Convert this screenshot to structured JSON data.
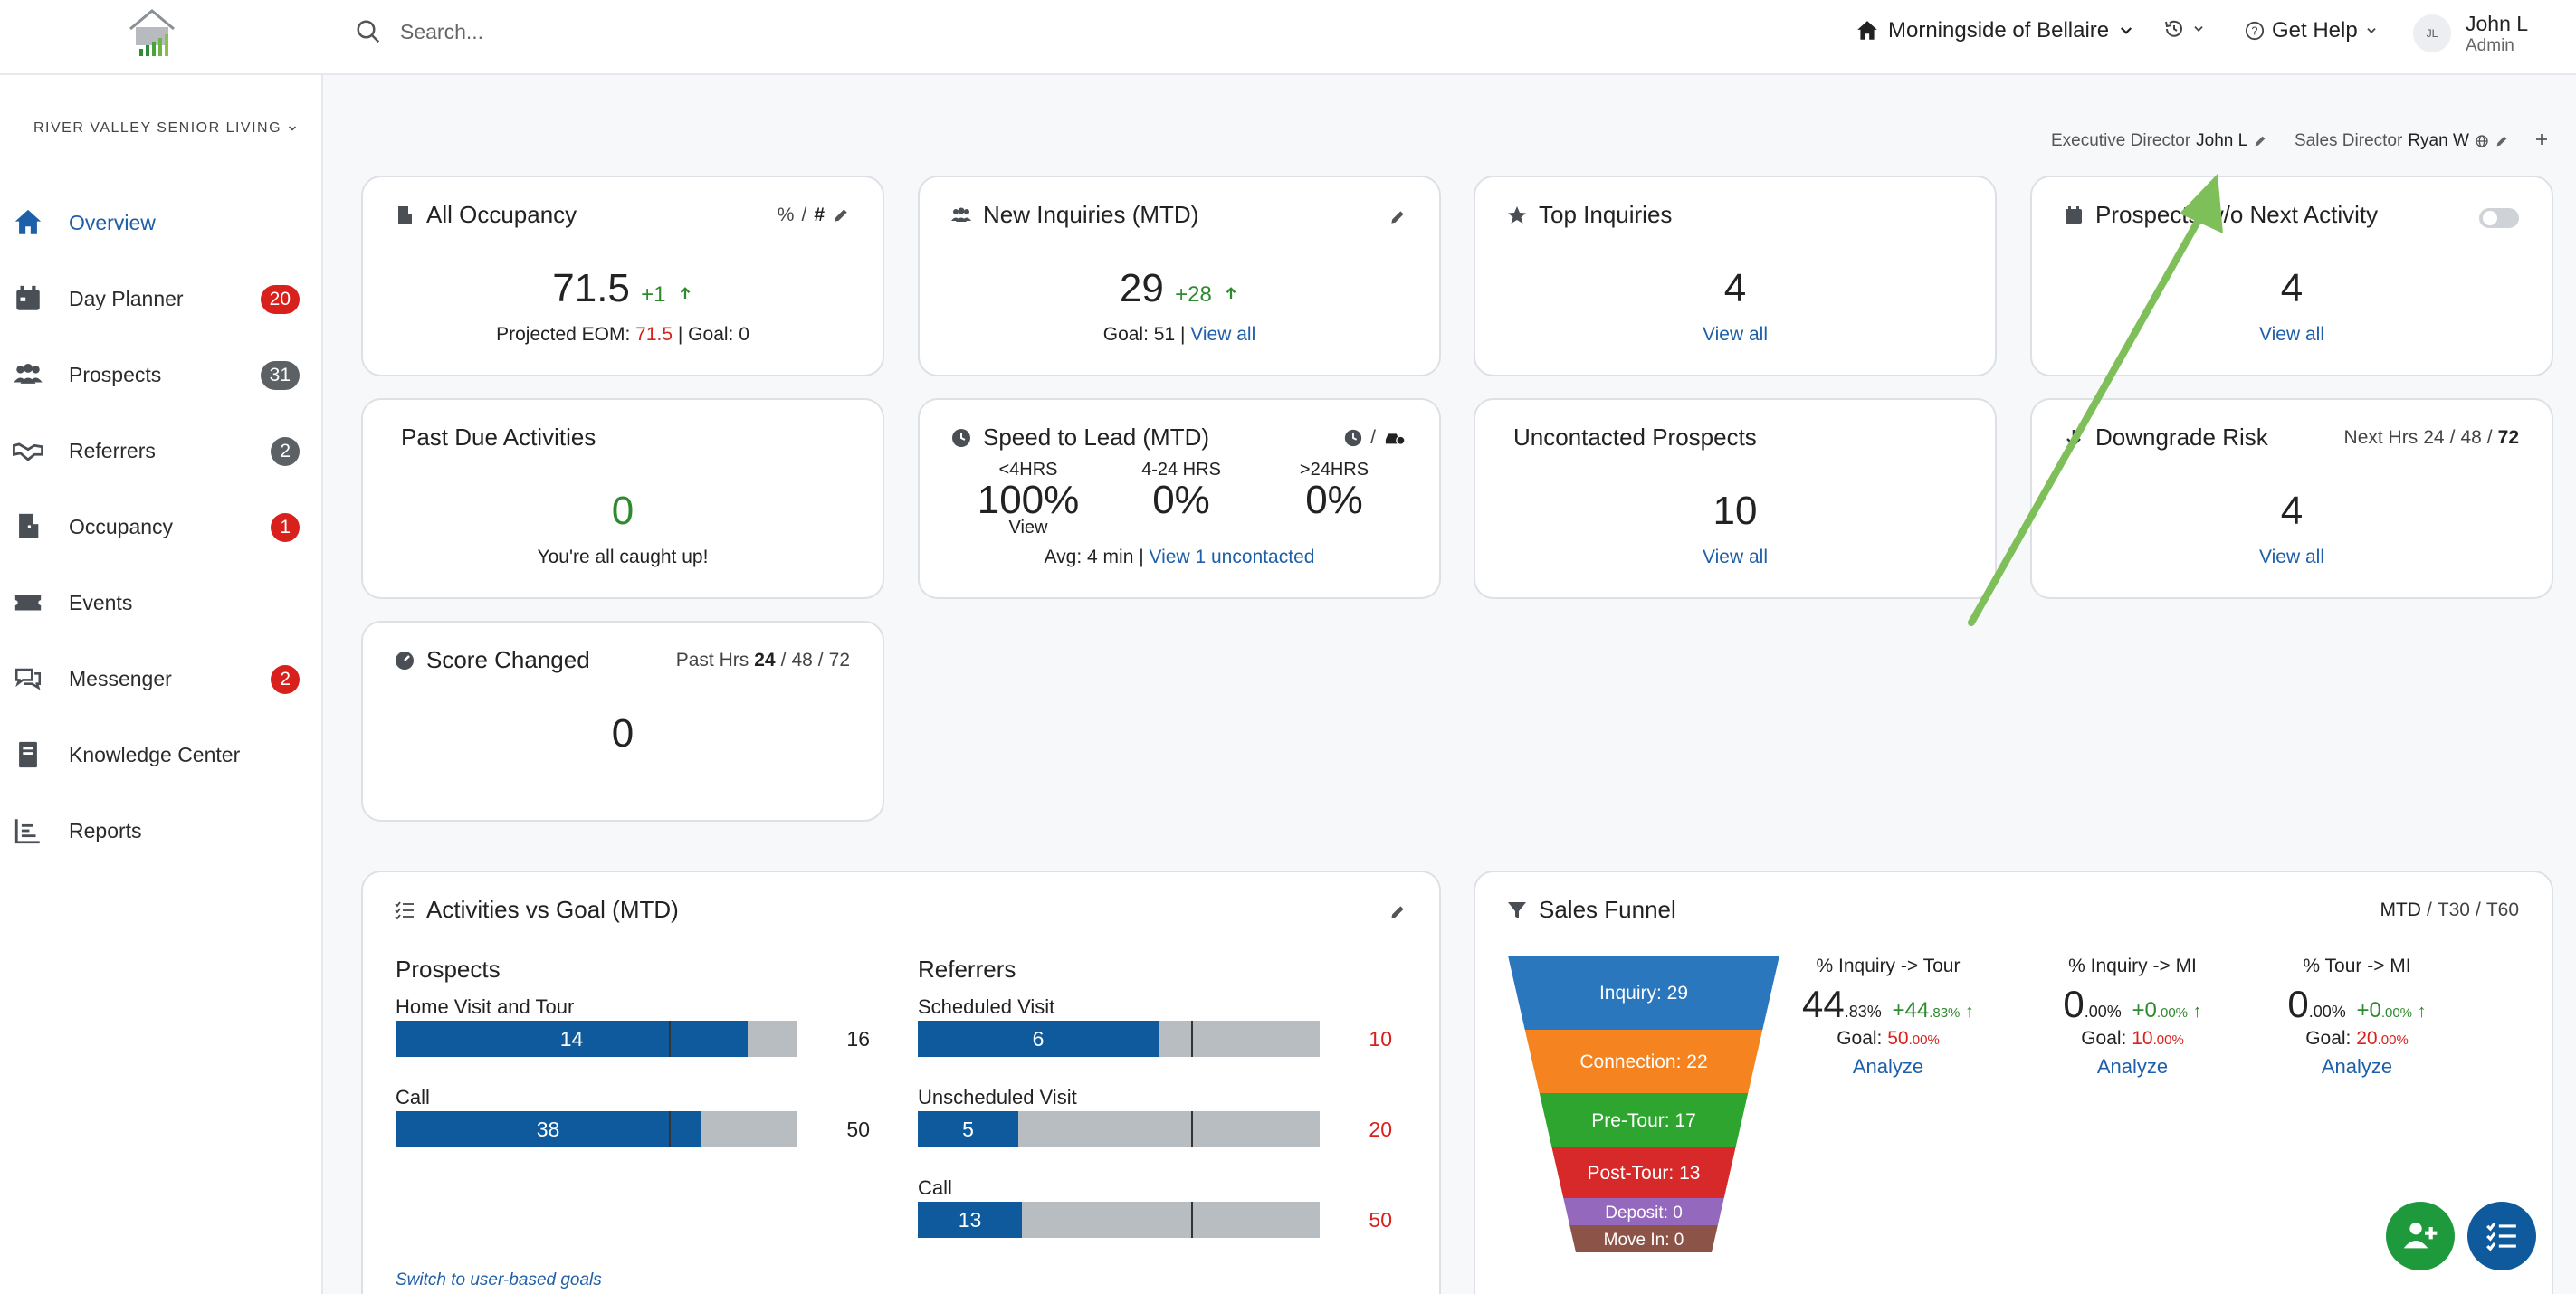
{
  "header": {
    "search_placeholder": "Search...",
    "community": "Morningside of Bellaire",
    "help": "Get Help",
    "user_initials": "JL",
    "user_name": "John L",
    "user_role": "Admin"
  },
  "sidebar": {
    "org": "RIVER VALLEY SENIOR LIVING",
    "items": [
      {
        "label": "Overview",
        "badge": ""
      },
      {
        "label": "Day Planner",
        "badge": "20"
      },
      {
        "label": "Prospects",
        "badge": "31"
      },
      {
        "label": "Referrers",
        "badge": "2"
      },
      {
        "label": "Occupancy",
        "badge": "1"
      },
      {
        "label": "Events",
        "badge": ""
      },
      {
        "label": "Messenger",
        "badge": "2"
      },
      {
        "label": "Knowledge Center",
        "badge": ""
      },
      {
        "label": "Reports",
        "badge": ""
      }
    ]
  },
  "directors": {
    "exec_label": "Executive Director",
    "exec_name": "John L",
    "sales_label": "Sales Director",
    "sales_name": "Ryan W"
  },
  "cards": {
    "occupancy": {
      "title": "All Occupancy",
      "toggle_pct": "%",
      "toggle_sep": "/",
      "toggle_num": "#",
      "value": "71.5",
      "delta": "+1",
      "proj_label": "Projected EOM:",
      "proj_value": "71.5",
      "goal": "| Goal: 0"
    },
    "inquiries": {
      "title": "New Inquiries (MTD)",
      "value": "29",
      "delta": "+28",
      "goal": "Goal: 51 |",
      "link": "View all"
    },
    "top": {
      "title": "Top Inquiries",
      "value": "4",
      "link": "View all"
    },
    "prospects_next": {
      "title": "Prospects w/o Next Activity",
      "value": "4",
      "link": "View all"
    },
    "past_due": {
      "title": "Past Due Activities",
      "value": "0",
      "note": "You're all caught up!"
    },
    "speed": {
      "title": "Speed to Lead (MTD)",
      "sep": "/",
      "cols": [
        {
          "label": "<4HRS",
          "value": "100%"
        },
        {
          "label": "4-24 HRS",
          "value": "0%"
        },
        {
          "label": ">24HRS",
          "value": "0%"
        }
      ],
      "view": "View",
      "avg": "Avg: 4 min |",
      "link": "View 1 uncontacted"
    },
    "uncontacted": {
      "title": "Uncontacted Prospects",
      "value": "10",
      "link": "View all"
    },
    "downgrade": {
      "title": "Downgrade Risk",
      "range_label": "Next Hrs",
      "r1": "24",
      "r2": "48",
      "r3": "72",
      "sep": "/",
      "value": "4",
      "link": "View all"
    },
    "score": {
      "title": "Score Changed",
      "range_label": "Past Hrs",
      "r1": "24",
      "r2": "48",
      "r3": "72",
      "sep": "/",
      "value": "0"
    }
  },
  "activities": {
    "title": "Activities vs Goal (MTD)",
    "prospects_title": "Prospects",
    "referrers_title": "Referrers",
    "prospects": [
      {
        "label": "Home Visit and Tour",
        "value": "14",
        "goal": "16",
        "fill": 0.875,
        "mark": 0.68,
        "goal_color": "#222"
      },
      {
        "label": "Call",
        "value": "38",
        "goal": "50",
        "fill": 0.76,
        "mark": 0.68,
        "goal_color": "#222"
      }
    ],
    "referrers": [
      {
        "label": "Scheduled Visit",
        "value": "6",
        "goal": "10",
        "fill": 0.6,
        "mark": 0.68,
        "goal_color": "#d8201c"
      },
      {
        "label": "Unscheduled Visit",
        "value": "5",
        "goal": "20",
        "fill": 0.25,
        "mark": 0.68,
        "goal_color": "#d8201c"
      },
      {
        "label": "Call",
        "value": "13",
        "goal": "50",
        "fill": 0.26,
        "mark": 0.68,
        "goal_color": "#d8201c"
      }
    ],
    "switch_link": "Switch to user-based goals"
  },
  "funnel": {
    "title": "Sales Funnel",
    "range_active": "MTD",
    "range_t30": "T30",
    "range_t60": "T60",
    "sep": "/",
    "stages": [
      {
        "label": "Inquiry: 29",
        "color": "#2a77be"
      },
      {
        "label": "Connection: 22",
        "color": "#f5831f"
      },
      {
        "label": "Pre-Tour: 17",
        "color": "#2ea52f"
      },
      {
        "label": "Post-Tour: 13",
        "color": "#d7292a"
      },
      {
        "label": "Deposit: 0",
        "color": "#9468bd"
      },
      {
        "label": "Move In: 0",
        "color": "#8c5449"
      }
    ],
    "conversions": [
      {
        "title": "Inquiry -> Tour",
        "int": "44",
        "frac": ".83%",
        "delta": "+44",
        "delta_frac": ".83%",
        "goal_label": "Goal:",
        "goal_int": "50",
        "goal_frac": ".00%",
        "link": "Analyze"
      },
      {
        "title": "Inquiry -> MI",
        "int": "0",
        "frac": ".00%",
        "delta": "+0",
        "delta_frac": ".00%",
        "goal_label": "Goal:",
        "goal_int": "10",
        "goal_frac": ".00%",
        "link": "Analyze"
      },
      {
        "title": "Tour -> MI",
        "int": "0",
        "frac": ".00%",
        "delta": "+0",
        "delta_frac": ".00%",
        "goal_label": "Goal:",
        "goal_int": "20",
        "goal_frac": ".00%",
        "link": "Analyze"
      }
    ]
  },
  "colors": {
    "accent": "#1d5fa8",
    "green": "#2e8a2e",
    "red": "#d8201c",
    "fab_green": "#1e9a3c",
    "fab_blue": "#0e5a9c",
    "arrow": "#7fbf5a"
  }
}
